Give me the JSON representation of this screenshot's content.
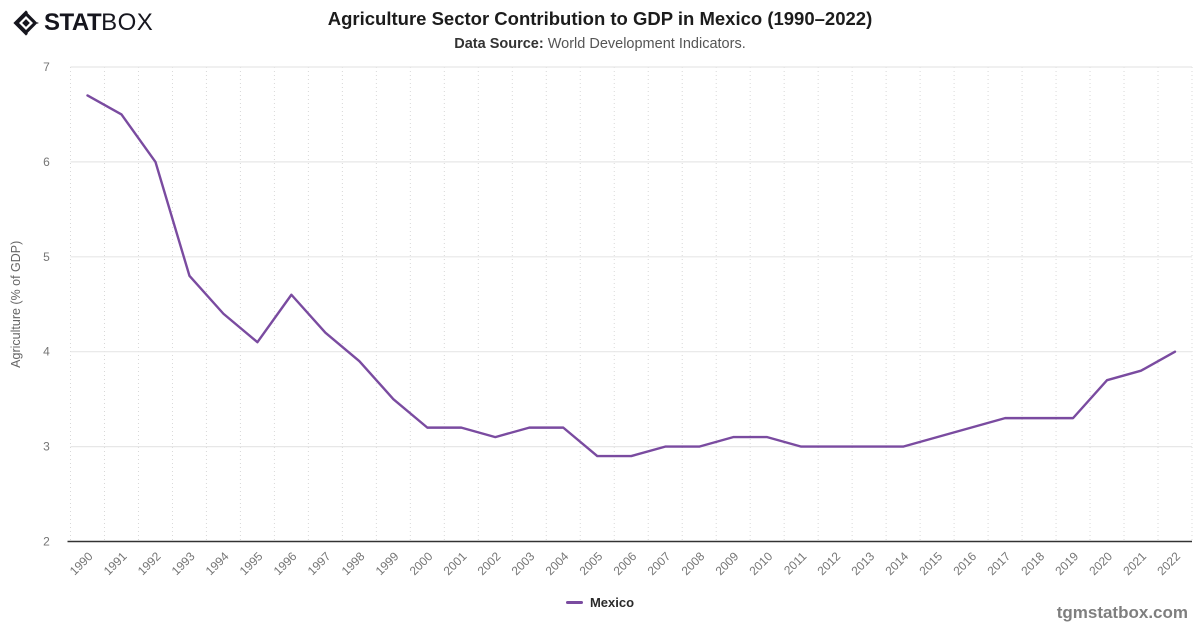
{
  "brand": {
    "stat": "STAT",
    "box": "BOX"
  },
  "header": {
    "title": "Agriculture Sector Contribution to GDP in Mexico (1990–2022)",
    "subtitle_label": "Data Source:",
    "subtitle_text": " World Development Indicators."
  },
  "footer": {
    "watermark": "tgmstatbox.com"
  },
  "chart_data": {
    "type": "line",
    "title": "Agriculture Sector Contribution to GDP in Mexico (1990–2022)",
    "xlabel": "",
    "ylabel": "Agriculture (% of GDP)",
    "ylim": [
      2,
      7
    ],
    "yticks": [
      2,
      3,
      4,
      5,
      6,
      7
    ],
    "grid": {
      "horizontal": "solid",
      "vertical": "dotted"
    },
    "legend_position": "bottom-center",
    "categories": [
      "1990",
      "1991",
      "1992",
      "1993",
      "1994",
      "1995",
      "1996",
      "1997",
      "1998",
      "1999",
      "2000",
      "2001",
      "2002",
      "2003",
      "2004",
      "2005",
      "2006",
      "2007",
      "2008",
      "2009",
      "2010",
      "2011",
      "2012",
      "2013",
      "2014",
      "2015",
      "2016",
      "2017",
      "2018",
      "2019",
      "2020",
      "2021",
      "2022"
    ],
    "series": [
      {
        "name": "Mexico",
        "color": "#7a4ba0",
        "values": [
          6.7,
          6.5,
          6.0,
          4.8,
          4.4,
          4.1,
          4.6,
          4.2,
          3.9,
          3.5,
          3.2,
          3.2,
          3.1,
          3.2,
          3.2,
          2.9,
          2.9,
          3.0,
          3.0,
          3.1,
          3.1,
          3.0,
          3.0,
          3.0,
          3.0,
          3.1,
          3.2,
          3.3,
          3.3,
          3.3,
          3.7,
          3.8,
          4.0
        ]
      }
    ]
  }
}
